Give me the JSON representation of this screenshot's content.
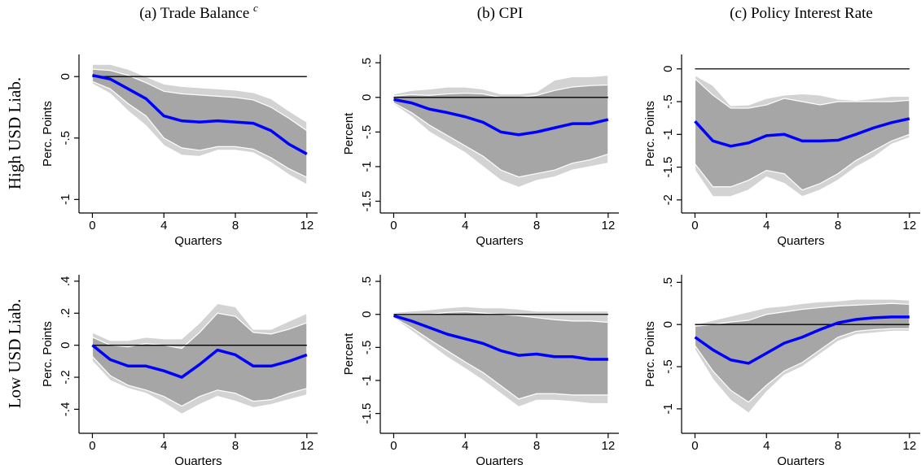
{
  "columns": [
    {
      "title": "(a) Trade Balance",
      "superscript": "c"
    },
    {
      "title": "(b) CPI"
    },
    {
      "title": "(c) Policy Interest Rate"
    }
  ],
  "rows": [
    "High USD Liab.",
    "Low USD Liab."
  ],
  "chart_data": [
    {
      "type": "line",
      "ylabel": "Perc. Points",
      "xlabel": "Quarters",
      "x": [
        0,
        1,
        2,
        3,
        4,
        5,
        6,
        7,
        8,
        9,
        10,
        11,
        12
      ],
      "xlim": [
        -0.75,
        12.6
      ],
      "xticks": [
        0,
        4,
        8,
        12
      ],
      "ylim": [
        -1.11,
        0.18
      ],
      "yticks": [
        {
          "value": -1,
          "label": "-1"
        },
        {
          "value": -0.5,
          "label": "-.5"
        },
        0
      ],
      "hline": 0,
      "color": "#0000ff",
      "values": [
        0.01,
        -0.02,
        -0.1,
        -0.18,
        -0.32,
        -0.36,
        -0.37,
        -0.36,
        -0.37,
        -0.38,
        -0.44,
        -0.55,
        -0.63
      ],
      "bands": [
        {
          "color": "#d3d3d3",
          "upper": [
            0.1,
            0.1,
            0.06,
            0.0,
            -0.06,
            -0.08,
            -0.09,
            -0.1,
            -0.11,
            -0.13,
            -0.18,
            -0.28,
            -0.37
          ],
          "lower": [
            -0.06,
            -0.14,
            -0.28,
            -0.4,
            -0.56,
            -0.64,
            -0.65,
            -0.6,
            -0.6,
            -0.62,
            -0.7,
            -0.8,
            -0.88
          ]
        },
        {
          "color": "#a6a6a6",
          "upper": [
            0.06,
            0.05,
            0.01,
            -0.05,
            -0.12,
            -0.14,
            -0.15,
            -0.16,
            -0.17,
            -0.19,
            -0.25,
            -0.34,
            -0.44
          ],
          "lower": [
            -0.04,
            -0.1,
            -0.22,
            -0.32,
            -0.5,
            -0.58,
            -0.6,
            -0.57,
            -0.57,
            -0.59,
            -0.66,
            -0.75,
            -0.82
          ]
        }
      ]
    },
    {
      "type": "line",
      "ylabel": "Percent",
      "xlabel": "Quarters",
      "x": [
        0,
        1,
        2,
        3,
        4,
        5,
        6,
        7,
        8,
        9,
        10,
        11,
        12
      ],
      "xlim": [
        -0.75,
        12.6
      ],
      "xticks": [
        0,
        4,
        8,
        12
      ],
      "ylim": [
        -1.67,
        0.62
      ],
      "yticks": [
        -1.5,
        -1,
        {
          "value": -0.5,
          "label": "-.5"
        },
        0,
        {
          "value": 0.5,
          "label": ".5"
        }
      ],
      "hline": 0,
      "color": "#0000ff",
      "values": [
        -0.03,
        -0.08,
        -0.17,
        -0.22,
        -0.28,
        -0.36,
        -0.5,
        -0.54,
        -0.5,
        -0.44,
        -0.38,
        -0.38,
        -0.32
      ],
      "bands": [
        {
          "color": "#d3d3d3",
          "upper": [
            0.05,
            0.1,
            0.12,
            0.15,
            0.15,
            0.12,
            0.05,
            0.05,
            0.08,
            0.25,
            0.3,
            0.3,
            0.32
          ],
          "lower": [
            -0.1,
            -0.28,
            -0.5,
            -0.65,
            -0.8,
            -1.0,
            -1.2,
            -1.3,
            -1.2,
            -1.15,
            -1.05,
            -1.0,
            -0.95
          ]
        },
        {
          "color": "#a6a6a6",
          "upper": [
            0.02,
            0.04,
            0.03,
            0.05,
            0.06,
            0.05,
            0.0,
            0.0,
            0.03,
            0.1,
            0.15,
            0.17,
            0.18
          ],
          "lower": [
            -0.08,
            -0.22,
            -0.4,
            -0.55,
            -0.7,
            -0.85,
            -1.05,
            -1.15,
            -1.1,
            -1.05,
            -0.95,
            -0.9,
            -0.82
          ]
        }
      ]
    },
    {
      "type": "line",
      "ylabel": "Perc. Points",
      "xlabel": "Quarters",
      "x": [
        0,
        1,
        2,
        3,
        4,
        5,
        6,
        7,
        8,
        9,
        10,
        11,
        12
      ],
      "xlim": [
        -0.75,
        12.6
      ],
      "xticks": [
        0,
        4,
        8,
        12
      ],
      "ylim": [
        -2.2,
        0.22
      ],
      "yticks": [
        -2,
        -1.5,
        -1,
        {
          "value": -0.5,
          "label": "-.5"
        },
        0
      ],
      "hline": 0,
      "color": "#0000ff",
      "values": [
        -0.8,
        -1.1,
        -1.18,
        -1.13,
        -1.02,
        -1.0,
        -1.1,
        -1.1,
        -1.09,
        -1.0,
        -0.9,
        -0.82,
        -0.76
      ],
      "bands": [
        {
          "color": "#d3d3d3",
          "upper": [
            -0.1,
            -0.25,
            -0.56,
            -0.55,
            -0.45,
            -0.4,
            -0.38,
            -0.4,
            -0.46,
            -0.48,
            -0.45,
            -0.42,
            -0.42
          ],
          "lower": [
            -1.55,
            -1.95,
            -1.95,
            -1.85,
            -1.65,
            -1.75,
            -1.95,
            -1.85,
            -1.7,
            -1.5,
            -1.35,
            -1.15,
            -1.05
          ]
        },
        {
          "color": "#a6a6a6",
          "upper": [
            -0.15,
            -0.4,
            -0.6,
            -0.6,
            -0.55,
            -0.45,
            -0.5,
            -0.55,
            -0.5,
            -0.5,
            -0.5,
            -0.5,
            -0.48
          ],
          "lower": [
            -1.45,
            -1.8,
            -1.8,
            -1.7,
            -1.55,
            -1.6,
            -1.85,
            -1.75,
            -1.6,
            -1.4,
            -1.25,
            -1.1,
            -1.0
          ]
        }
      ]
    },
    {
      "type": "line",
      "ylabel": "Perc. Points",
      "xlabel": "Quarters",
      "x": [
        0,
        1,
        2,
        3,
        4,
        5,
        6,
        7,
        8,
        9,
        10,
        11,
        12
      ],
      "xlim": [
        -0.75,
        12.6
      ],
      "xticks": [
        0,
        4,
        8,
        12
      ],
      "ylim": [
        -0.55,
        0.44
      ],
      "yticks": [
        {
          "value": -0.4,
          "label": "-.4"
        },
        {
          "value": -0.2,
          "label": "-.2"
        },
        0,
        {
          "value": 0.2,
          "label": ".2"
        },
        {
          "value": 0.4,
          "label": ".4"
        }
      ],
      "hline": 0,
      "color": "#0000ff",
      "values": [
        0,
        -0.09,
        -0.13,
        -0.13,
        -0.16,
        -0.2,
        -0.12,
        -0.03,
        -0.06,
        -0.13,
        -0.13,
        -0.1,
        -0.06
      ],
      "bands": [
        {
          "color": "#d3d3d3",
          "upper": [
            0.08,
            0.03,
            0.03,
            0.05,
            0.04,
            0.04,
            0.14,
            0.26,
            0.24,
            0.1,
            0.1,
            0.15,
            0.2
          ],
          "lower": [
            -0.1,
            -0.22,
            -0.27,
            -0.3,
            -0.36,
            -0.43,
            -0.37,
            -0.32,
            -0.35,
            -0.39,
            -0.37,
            -0.34,
            -0.31
          ]
        },
        {
          "color": "#a6a6a6",
          "upper": [
            0.05,
            0.0,
            -0.01,
            0.01,
            0.0,
            -0.02,
            0.08,
            0.2,
            0.18,
            0.08,
            0.07,
            0.1,
            0.14
          ],
          "lower": [
            -0.07,
            -0.19,
            -0.25,
            -0.28,
            -0.32,
            -0.38,
            -0.32,
            -0.28,
            -0.3,
            -0.35,
            -0.34,
            -0.3,
            -0.27
          ]
        }
      ]
    },
    {
      "type": "line",
      "ylabel": "Percent",
      "xlabel": "Quarters",
      "x": [
        0,
        1,
        2,
        3,
        4,
        5,
        6,
        7,
        8,
        9,
        10,
        11,
        12
      ],
      "xlim": [
        -0.75,
        12.6
      ],
      "xticks": [
        0,
        4,
        8,
        12
      ],
      "ylim": [
        -1.8,
        0.6
      ],
      "yticks": [
        -1.5,
        -1,
        {
          "value": -0.5,
          "label": "-.5"
        },
        0,
        {
          "value": 0.5,
          "label": ".5"
        }
      ],
      "hline": 0,
      "color": "#0000ff",
      "values": [
        -0.02,
        -0.1,
        -0.2,
        -0.3,
        -0.37,
        -0.44,
        -0.55,
        -0.62,
        -0.6,
        -0.64,
        -0.64,
        -0.68,
        -0.68
      ],
      "bands": [
        {
          "color": "#d3d3d3",
          "upper": [
            0.03,
            0.05,
            0.07,
            0.1,
            0.12,
            0.1,
            0.1,
            0.08,
            0.05,
            0.05,
            0.05,
            0.05,
            0.05
          ],
          "lower": [
            -0.06,
            -0.25,
            -0.45,
            -0.65,
            -0.82,
            -1.0,
            -1.2,
            -1.4,
            -1.3,
            -1.3,
            -1.32,
            -1.35,
            -1.35
          ]
        },
        {
          "color": "#a6a6a6",
          "upper": [
            0.01,
            0.0,
            0.0,
            0.03,
            0.04,
            0.02,
            0.0,
            -0.02,
            -0.05,
            -0.08,
            -0.1,
            -0.1,
            -0.12
          ],
          "lower": [
            -0.05,
            -0.2,
            -0.38,
            -0.55,
            -0.72,
            -0.88,
            -1.08,
            -1.28,
            -1.2,
            -1.2,
            -1.22,
            -1.22,
            -1.22
          ]
        }
      ]
    },
    {
      "type": "line",
      "ylabel": "Perc. Points",
      "xlabel": "Quarters",
      "x": [
        0,
        1,
        2,
        3,
        4,
        5,
        6,
        7,
        8,
        9,
        10,
        11,
        12
      ],
      "xlim": [
        -0.75,
        12.6
      ],
      "xticks": [
        0,
        4,
        8,
        12
      ],
      "ylim": [
        -1.29,
        0.59
      ],
      "yticks": [
        -1,
        {
          "value": -0.5,
          "label": "-.5"
        },
        0,
        {
          "value": 0.5,
          "label": ".5"
        }
      ],
      "hline": 0,
      "color": "#0000ff",
      "values": [
        -0.15,
        -0.3,
        -0.42,
        -0.46,
        -0.34,
        -0.22,
        -0.15,
        -0.06,
        0.02,
        0.06,
        0.08,
        0.09,
        0.09
      ],
      "bands": [
        {
          "color": "#d3d3d3",
          "upper": [
            0.0,
            0.05,
            0.1,
            0.15,
            0.2,
            0.22,
            0.25,
            0.27,
            0.28,
            0.3,
            0.3,
            0.3,
            0.29
          ],
          "lower": [
            -0.3,
            -0.65,
            -0.9,
            -1.05,
            -0.8,
            -0.6,
            -0.5,
            -0.35,
            -0.2,
            -0.12,
            -0.1,
            -0.08,
            -0.08
          ]
        },
        {
          "color": "#a6a6a6",
          "upper": [
            -0.02,
            0.0,
            0.03,
            0.05,
            0.12,
            0.15,
            0.18,
            0.2,
            0.22,
            0.23,
            0.24,
            0.25,
            0.24
          ],
          "lower": [
            -0.25,
            -0.55,
            -0.78,
            -0.92,
            -0.72,
            -0.55,
            -0.45,
            -0.3,
            -0.15,
            -0.08,
            -0.06,
            -0.05,
            -0.05
          ]
        }
      ]
    }
  ]
}
